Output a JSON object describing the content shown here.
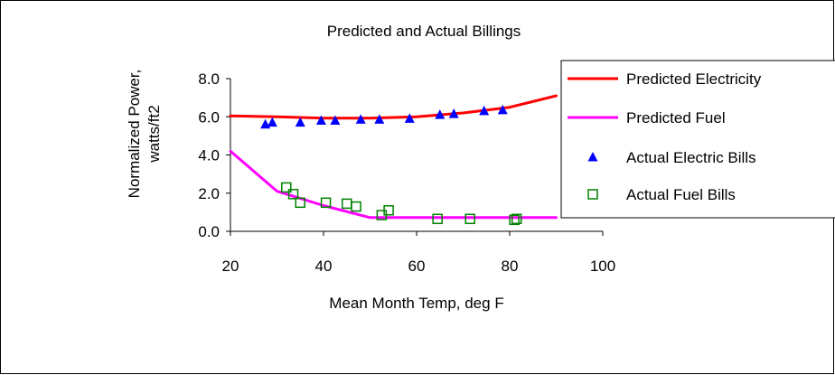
{
  "chart_data": {
    "type": "line",
    "title": "Predicted and Actual Billings",
    "xlabel": "Mean Month Temp, deg F",
    "ylabel": [
      "Normalized Power,",
      "watts/ft2"
    ],
    "xlim": [
      20,
      100
    ],
    "ylim": [
      0,
      8
    ],
    "x_ticks": [
      20,
      40,
      60,
      80,
      100
    ],
    "x_tick_labels": [
      "20",
      "40",
      "60",
      "80",
      "100"
    ],
    "y_ticks": [
      0,
      2,
      4,
      6,
      8
    ],
    "y_tick_labels": [
      "0.0",
      "2.0",
      "4.0",
      "6.0",
      "8.0"
    ],
    "grid": false,
    "legend_position": "right",
    "series": [
      {
        "name": "Predicted Electricity",
        "kind": "line",
        "color": "#ff0000",
        "x": [
          20,
          30,
          40,
          50,
          60,
          70,
          80,
          90
        ],
        "y": [
          6.05,
          6.0,
          5.93,
          5.93,
          6.0,
          6.2,
          6.5,
          7.1
        ]
      },
      {
        "name": "Predicted Fuel",
        "kind": "line",
        "color": "#ff00ff",
        "x": [
          20,
          30,
          40,
          50,
          60,
          70,
          80,
          90
        ],
        "y": [
          4.2,
          2.1,
          1.35,
          0.72,
          0.72,
          0.72,
          0.72,
          0.72
        ]
      },
      {
        "name": "Actual Electric Bills",
        "kind": "scatter",
        "marker": "triangle",
        "color": "#0000ff",
        "x": [
          27.5,
          29,
          35,
          39.5,
          42.5,
          48,
          52,
          58.5,
          65,
          68,
          74.5,
          78.5
        ],
        "y": [
          5.6,
          5.7,
          5.7,
          5.8,
          5.8,
          5.85,
          5.85,
          5.9,
          6.1,
          6.15,
          6.3,
          6.35
        ]
      },
      {
        "name": "Actual Fuel Bills",
        "kind": "scatter",
        "marker": "square-open",
        "color": "#008000",
        "x": [
          32,
          33.5,
          35,
          40.5,
          45,
          47,
          52.5,
          54,
          64.5,
          71.5,
          81,
          81.5
        ],
        "y": [
          2.3,
          1.95,
          1.5,
          1.5,
          1.45,
          1.3,
          0.85,
          1.1,
          0.65,
          0.65,
          0.6,
          0.65
        ]
      }
    ]
  }
}
